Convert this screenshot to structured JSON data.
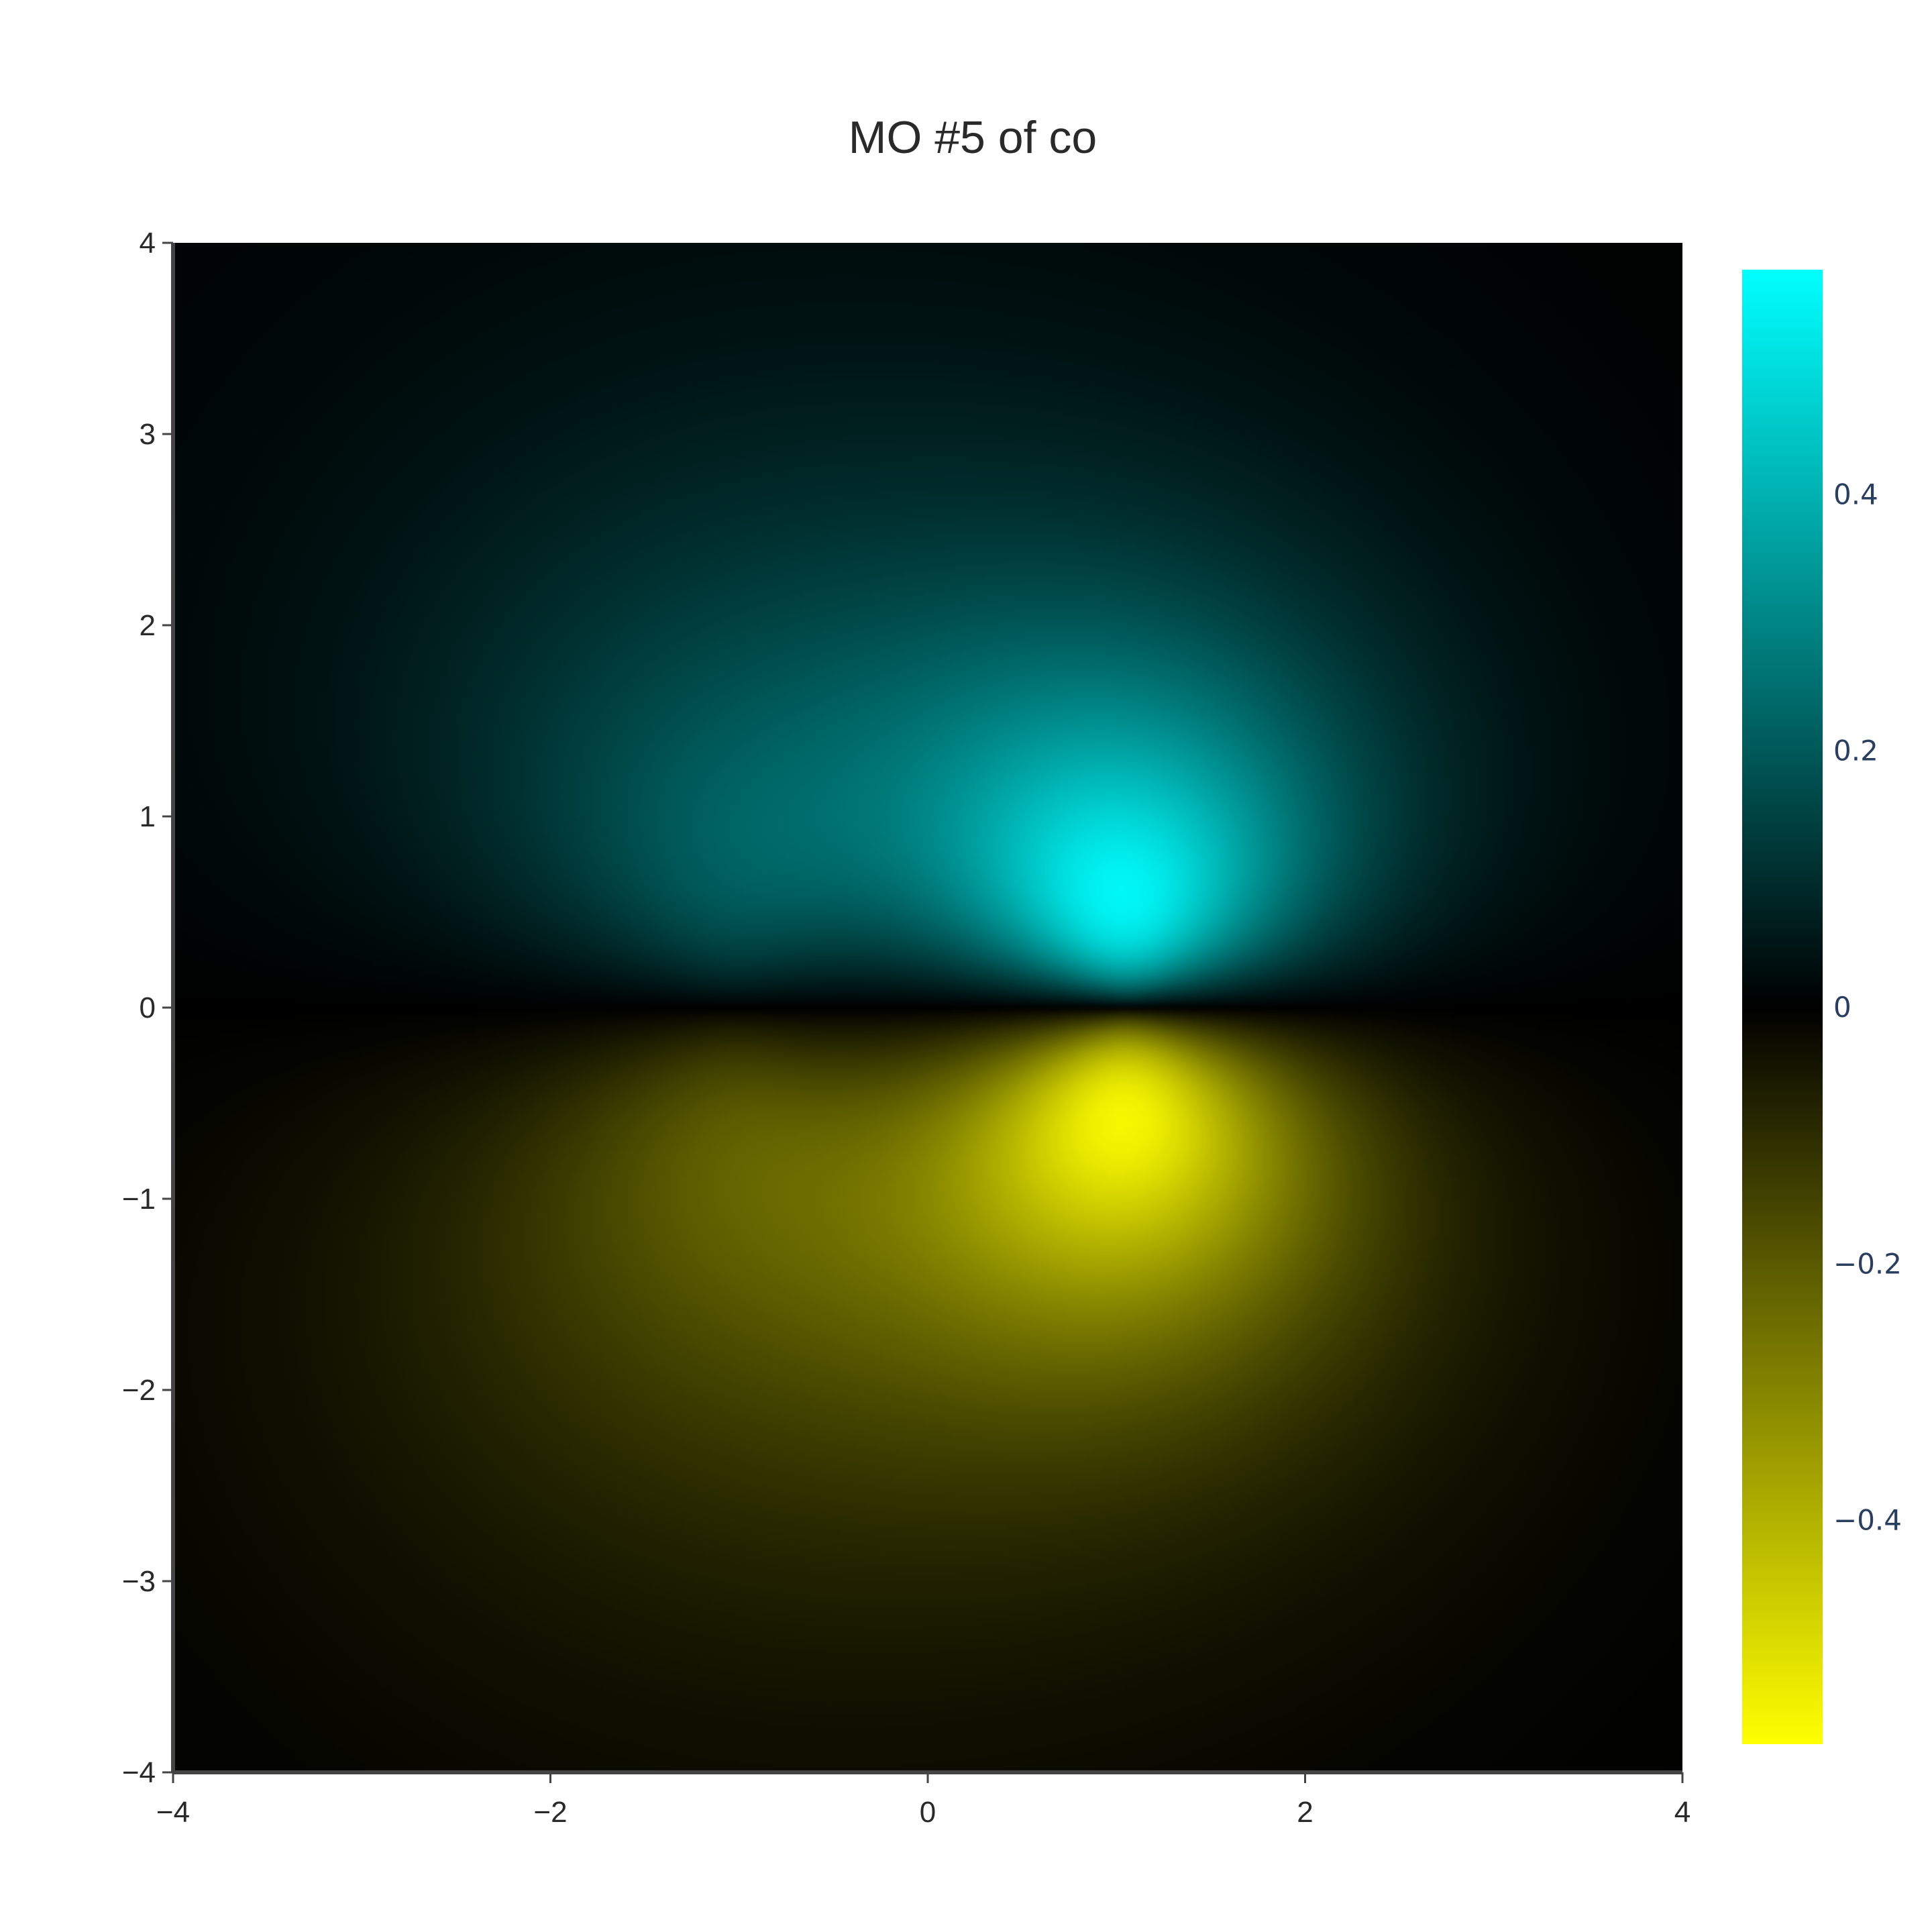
{
  "chart_data": {
    "type": "heatmap",
    "title": "MO #5 of co",
    "xlabel": "",
    "ylabel": "",
    "xlim": [
      -4,
      4
    ],
    "ylim": [
      -4,
      4
    ],
    "x_ticks": [
      -4,
      -2,
      0,
      2,
      4
    ],
    "y_ticks": [
      -4,
      -3,
      -2,
      -1,
      0,
      1,
      2,
      3,
      4
    ],
    "x_tick_labels": [
      "−4",
      "−2",
      "0",
      "2",
      "4"
    ],
    "y_tick_labels": [
      "−4",
      "−3",
      "−2",
      "−1",
      "0",
      "1",
      "2",
      "3",
      "4"
    ],
    "colorbar": {
      "range": [
        -0.575,
        0.575
      ],
      "ticks": [
        0.4,
        0.2,
        0,
        -0.2,
        -0.4
      ],
      "tick_labels": [
        "0.4",
        "0.2",
        "0",
        "−0.2",
        "−0.4"
      ],
      "colorscale": [
        [
          0,
          "#ffff00"
        ],
        [
          0.5,
          "#000000"
        ],
        [
          1,
          "#00ffff"
        ]
      ]
    },
    "lobes": [
      {
        "x": 1.05,
        "y": 0.45,
        "value": 0.575
      },
      {
        "x": -1.05,
        "y": 0.55,
        "value": 0.28
      },
      {
        "x": 1.05,
        "y": -0.45,
        "value": -0.575
      },
      {
        "x": -1.05,
        "y": -0.55,
        "value": -0.28
      }
    ],
    "grid": false,
    "legend": "colorbar-right"
  }
}
